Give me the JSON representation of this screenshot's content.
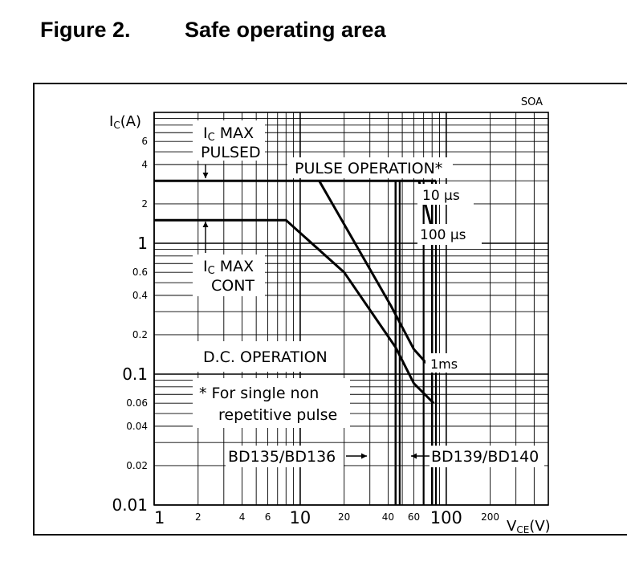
{
  "figure": {
    "number": "Figure 2.",
    "title": "Safe operating area"
  },
  "chart_data": {
    "type": "line",
    "title": "SOA",
    "xlabel_main": "V",
    "xlabel_sub": "CE",
    "xlabel_unit": "(V)",
    "ylabel_main": "I",
    "ylabel_sub": "C",
    "ylabel_unit": "(A)",
    "xscale": "log",
    "yscale": "log",
    "xlim": [
      1,
      500
    ],
    "ylim": [
      0.01,
      10
    ],
    "grid": true,
    "x_ticks": [
      {
        "value": 1,
        "label": "1",
        "major": true
      },
      {
        "value": 2,
        "label": "2",
        "major": false
      },
      {
        "value": 4,
        "label": "4",
        "major": false
      },
      {
        "value": 6,
        "label": "6",
        "major": false
      },
      {
        "value": 10,
        "label": "10",
        "major": true
      },
      {
        "value": 20,
        "label": "20",
        "major": false
      },
      {
        "value": 40,
        "label": "40",
        "major": false
      },
      {
        "value": 60,
        "label": "60",
        "major": false
      },
      {
        "value": 100,
        "label": "100",
        "major": true
      },
      {
        "value": 200,
        "label": "200",
        "major": false
      }
    ],
    "y_ticks": [
      {
        "value": 0.01,
        "label": "0.01",
        "major": true
      },
      {
        "value": 0.02,
        "label": "0.02",
        "major": false
      },
      {
        "value": 0.04,
        "label": "0.04",
        "major": false
      },
      {
        "value": 0.06,
        "label": "0.06",
        "major": false
      },
      {
        "value": 0.1,
        "label": "0.1",
        "major": true
      },
      {
        "value": 0.2,
        "label": "0.2",
        "major": false
      },
      {
        "value": 0.4,
        "label": "0.4",
        "major": false
      },
      {
        "value": 0.6,
        "label": "0.6",
        "major": false
      },
      {
        "value": 1,
        "label": "1",
        "major": true
      },
      {
        "value": 2,
        "label": "2",
        "major": false
      },
      {
        "value": 4,
        "label": "4",
        "major": false
      },
      {
        "value": 6,
        "label": "6",
        "major": false
      }
    ],
    "series": [
      {
        "id": "pulsed-max",
        "points": [
          [
            1,
            3
          ],
          [
            13.5,
            3
          ]
        ]
      },
      {
        "id": "pulse-10us",
        "points": [
          [
            13.5,
            3
          ],
          [
            85,
            3
          ]
        ]
      },
      {
        "id": "pulse-100us",
        "points": [
          [
            65,
            3
          ],
          [
            85,
            1
          ]
        ]
      },
      {
        "id": "pulse-1ms",
        "points": [
          [
            13.5,
            3
          ],
          [
            42,
            0.33
          ],
          [
            60,
            0.155
          ],
          [
            82,
            0.105
          ]
        ]
      },
      {
        "id": "dc",
        "points": [
          [
            1,
            1.5
          ],
          [
            8,
            1.5
          ],
          [
            20,
            0.6
          ],
          [
            45,
            0.16
          ],
          [
            60,
            0.085
          ],
          [
            82,
            0.06
          ]
        ]
      }
    ],
    "vertical_limits": [
      {
        "id": "bd135-136",
        "x": 45,
        "from": 0.01,
        "to": 3
      },
      {
        "id": "bd139-140",
        "x": 80,
        "from": 0.01,
        "to": 3
      }
    ],
    "extra_vertical_lines": [
      48,
      70,
      85
    ],
    "annotations": {
      "ic_max_pulsed_1": "I",
      "ic_max_pulsed_sub": "C",
      "ic_max_pulsed_2": "MAX",
      "ic_max_pulsed_3": "PULSED",
      "ic_max_cont_1": "I",
      "ic_max_cont_sub": "C",
      "ic_max_cont_2": "MAX",
      "ic_max_cont_3": "CONT",
      "pulse_operation": "PULSE OPERATION*",
      "label_10us": "10 μs",
      "label_100us": "100 μs",
      "label_1ms": "1ms",
      "dc_operation": "D.C. OPERATION",
      "footnote_1": "* For single non",
      "footnote_2": "repetitive pulse",
      "bd135": "BD135/BD136",
      "bd139": "BD139/BD140"
    }
  }
}
